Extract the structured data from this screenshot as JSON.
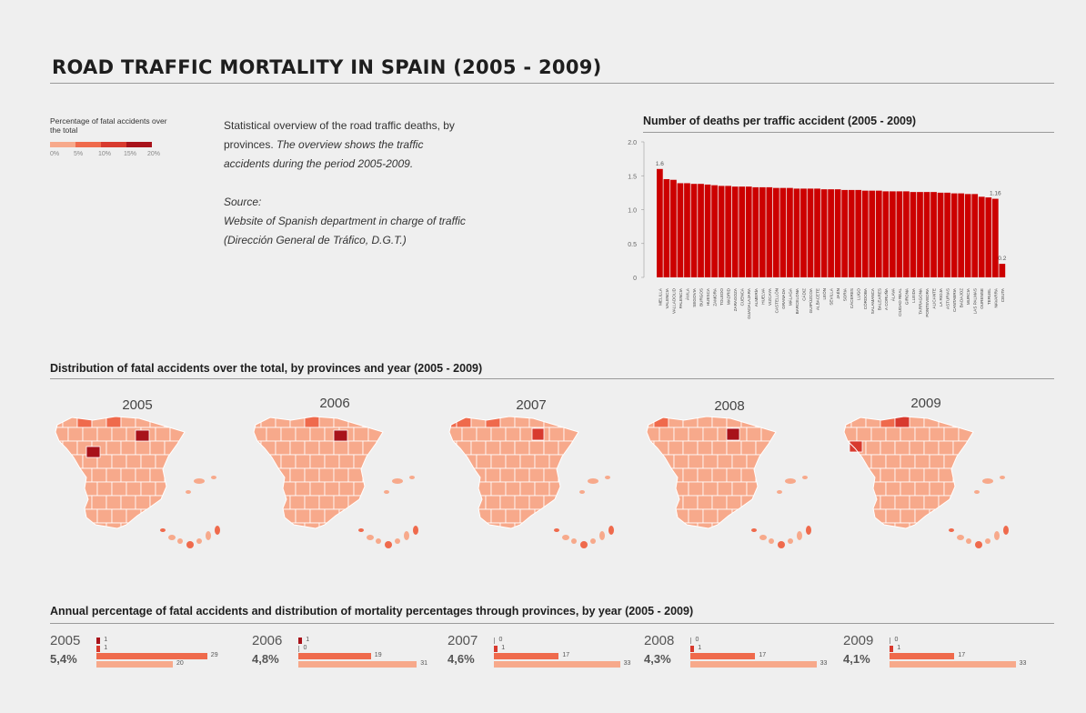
{
  "title": "ROAD TRAFFIC MORTALITY IN SPAIN (2005 - 2009)",
  "legend": {
    "label": "Percentage of fatal accidents over the total",
    "ticks": [
      "0%",
      "5%",
      "10%",
      "15%",
      "20%"
    ],
    "colors": [
      "#f7a98b",
      "#ef6a4c",
      "#d83a2e",
      "#a8121a"
    ]
  },
  "intro": {
    "line1": "Statistical overview of the road traffic deaths, by",
    "line2_normal": "provinces.",
    "line2_italic": "The overview shows the traffic",
    "line3": "accidents during the period 2005-2009.",
    "source_label": "Source:",
    "source_line1": "Website of Spanish department in charge of traffic",
    "source_line2": "(Dirección General de Tráfico, D.G.T.)"
  },
  "colors": {
    "bar": "#cc0000",
    "light": "#f7a98b",
    "mid": "#ef6a4c",
    "dark": "#d83a2e",
    "darkest": "#a8121a"
  },
  "sections": {
    "deaths_title": "Number of deaths per traffic accident (2005 - 2009)",
    "maps_title": "Distribution of fatal accidents over the total, by provinces and year (2005 - 2009)",
    "annual_title": "Annual percentage of fatal accidents and distribution of mortality percentages through provinces, by year (2005 - 2009)"
  },
  "chart_data": [
    {
      "type": "bar",
      "title": "Number of deaths per traffic accident (2005 - 2009)",
      "ylim": [
        0,
        2.0
      ],
      "yticks": [
        "0",
        "0.5",
        "1.0",
        "1.5",
        "2.0"
      ],
      "categories": [
        "MELILLA",
        "VALENCIA",
        "VALLADOLID",
        "PALENCIA",
        "ÁVILA",
        "SEGOVIA",
        "BURGOS",
        "HUESCA",
        "ZAMORA",
        "TOLEDO",
        "MADRID",
        "ZARAGOZA",
        "CUENCA",
        "GUADALAJARA",
        "ALMERÍA",
        "HUELVA",
        "VIZCAYA",
        "CASTELLÓN",
        "GRANADA",
        "MÁLAGA",
        "BARCELONA",
        "CÁDIZ",
        "GUIPÚZCOA",
        "ALBACETE",
        "LEÓN",
        "SEVILLA",
        "JAÉN",
        "SORIA",
        "CÁCERES",
        "LUGO",
        "CÓRDOBA",
        "SALAMANCA",
        "BALEARES",
        "A CORUÑA",
        "ÁLAVA",
        "CIUDAD REAL",
        "GIRONA",
        "LLEIDA",
        "TARRAGONA",
        "PONTEVEDRA",
        "ALICANTE",
        "LA RIOJA",
        "ASTURIAS",
        "CANTABRIA",
        "BADAJOZ",
        "MURCIA",
        "LAS PALMAS",
        "OURENSE",
        "TERUEL",
        "NAVARRA",
        "CEUTA"
      ],
      "values": [
        1.6,
        1.45,
        1.44,
        1.39,
        1.39,
        1.38,
        1.38,
        1.37,
        1.36,
        1.35,
        1.35,
        1.34,
        1.34,
        1.34,
        1.33,
        1.33,
        1.33,
        1.32,
        1.32,
        1.32,
        1.31,
        1.31,
        1.31,
        1.31,
        1.3,
        1.3,
        1.3,
        1.29,
        1.29,
        1.29,
        1.28,
        1.28,
        1.28,
        1.27,
        1.27,
        1.27,
        1.27,
        1.26,
        1.26,
        1.26,
        1.26,
        1.25,
        1.25,
        1.24,
        1.24,
        1.23,
        1.23,
        1.19,
        1.18,
        1.16,
        0.2
      ],
      "data_labels": {
        "0": "1.6",
        "49": "1.16",
        "50": "0.2"
      }
    },
    {
      "type": "bar",
      "title": "Annual percentage of fatal accidents and distribution of mortality percentages through provinces, by year (2005 - 2009)",
      "groups": [
        {
          "year": "2005",
          "total": "5,4%",
          "values": [
            1,
            1,
            29,
            20
          ]
        },
        {
          "year": "2006",
          "total": "4,8%",
          "values": [
            1,
            0,
            19,
            31
          ]
        },
        {
          "year": "2007",
          "total": "4,6%",
          "values": [
            0,
            1,
            17,
            33
          ]
        },
        {
          "year": "2008",
          "total": "4,3%",
          "values": [
            0,
            1,
            17,
            33
          ]
        },
        {
          "year": "2009",
          "total": "4,1%",
          "values": [
            0,
            1,
            17,
            33
          ]
        }
      ]
    }
  ],
  "maps": {
    "years": [
      "2005",
      "2006",
      "2007",
      "2008",
      "2009"
    ]
  }
}
